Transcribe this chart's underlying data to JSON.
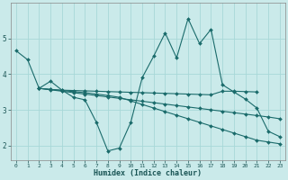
{
  "xlabel": "Humidex (Indice chaleur)",
  "bg_color": "#caeaea",
  "grid_color": "#a8d8d8",
  "line_color": "#1a6b6b",
  "xlim": [
    -0.5,
    23.5
  ],
  "ylim": [
    1.6,
    6.0
  ],
  "yticks": [
    2,
    3,
    4,
    5
  ],
  "xticks": [
    0,
    1,
    2,
    3,
    4,
    5,
    6,
    7,
    8,
    9,
    10,
    11,
    12,
    13,
    14,
    15,
    16,
    17,
    18,
    19,
    20,
    21,
    22,
    23
  ],
  "lines": [
    {
      "x": [
        0,
        1,
        2,
        3,
        4,
        5,
        6,
        7,
        8,
        9,
        10,
        11,
        12,
        13,
        14,
        15,
        16,
        17,
        18,
        19,
        20,
        21,
        22,
        23
      ],
      "y": [
        4.65,
        4.4,
        3.6,
        3.8,
        3.55,
        3.35,
        3.28,
        2.65,
        1.85,
        1.93,
        2.65,
        3.9,
        4.5,
        5.15,
        4.45,
        5.55,
        4.85,
        5.25,
        3.7,
        3.5,
        3.3,
        3.05,
        2.4,
        2.25
      ]
    },
    {
      "x": [
        2,
        3,
        4,
        5,
        6,
        7,
        8,
        9,
        10,
        11,
        12,
        13,
        14,
        15,
        16,
        17,
        18,
        19,
        20,
        21
      ],
      "y": [
        3.6,
        3.57,
        3.55,
        3.54,
        3.53,
        3.52,
        3.51,
        3.5,
        3.49,
        3.48,
        3.47,
        3.46,
        3.45,
        3.44,
        3.43,
        3.42,
        3.52,
        3.52,
        3.51,
        3.5
      ]
    },
    {
      "x": [
        2,
        3,
        4,
        5,
        6,
        7,
        8,
        9,
        10,
        11,
        12,
        13,
        14,
        15,
        16,
        17,
        18,
        19,
        20,
        21,
        22,
        23
      ],
      "y": [
        3.6,
        3.56,
        3.52,
        3.48,
        3.44,
        3.4,
        3.36,
        3.32,
        3.28,
        3.24,
        3.2,
        3.16,
        3.12,
        3.08,
        3.04,
        3.0,
        2.96,
        2.92,
        2.88,
        2.84,
        2.8,
        2.75
      ]
    },
    {
      "x": [
        2,
        3,
        4,
        5,
        6,
        7,
        8,
        9,
        10,
        11,
        12,
        13,
        14,
        15,
        16,
        17,
        18,
        19,
        20,
        21,
        22,
        23
      ],
      "y": [
        3.6,
        3.57,
        3.54,
        3.51,
        3.48,
        3.44,
        3.4,
        3.35,
        3.25,
        3.15,
        3.05,
        2.95,
        2.85,
        2.75,
        2.65,
        2.55,
        2.45,
        2.35,
        2.25,
        2.15,
        2.1,
        2.05
      ]
    }
  ]
}
